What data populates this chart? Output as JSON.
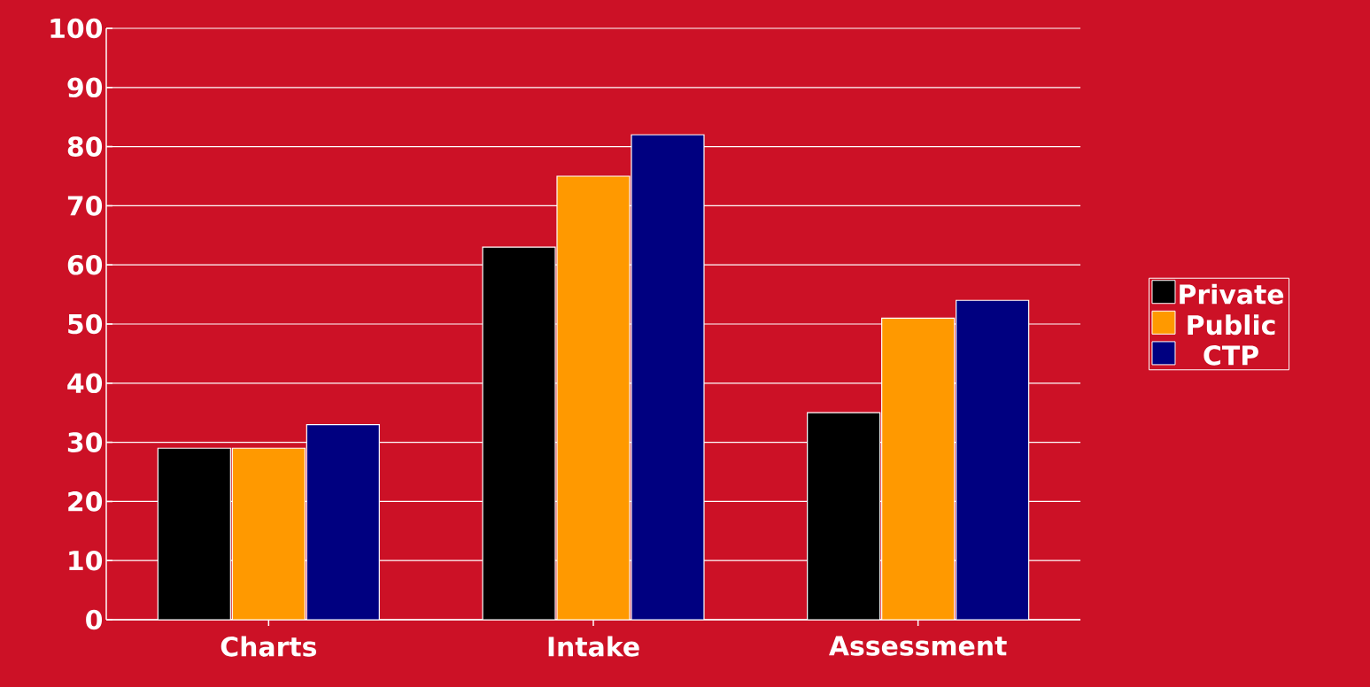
{
  "chart_data": {
    "type": "bar",
    "categories": [
      "Charts",
      "Intake",
      "Assessment"
    ],
    "series": [
      {
        "name": "Private",
        "color": "#000000",
        "values": [
          29,
          63,
          35
        ]
      },
      {
        "name": "Public",
        "color": "#ff9900",
        "values": [
          29,
          75,
          51
        ]
      },
      {
        "name": "CTP",
        "color": "#000080",
        "values": [
          33,
          82,
          54
        ]
      }
    ],
    "ylim": [
      0,
      100
    ],
    "yticks": [
      0,
      10,
      20,
      30,
      40,
      50,
      60,
      70,
      80,
      90,
      100
    ],
    "grid": "y",
    "legend": "right"
  }
}
